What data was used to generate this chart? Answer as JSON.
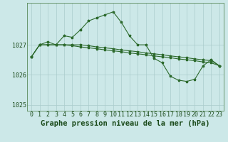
{
  "title": "Graphe pression niveau de la mer (hPa)",
  "x_hours": [
    0,
    1,
    2,
    3,
    4,
    5,
    6,
    7,
    8,
    9,
    10,
    11,
    12,
    13,
    14,
    15,
    16,
    17,
    18,
    19,
    20,
    21,
    22,
    23
  ],
  "line1": [
    1026.6,
    1027.0,
    1027.1,
    1027.0,
    1027.3,
    1027.25,
    1027.5,
    1027.8,
    1027.9,
    1028.0,
    1028.1,
    1027.75,
    1027.3,
    1027.0,
    1027.0,
    1026.55,
    1026.4,
    1025.95,
    1025.82,
    1025.78,
    1025.85,
    1026.3,
    1026.5,
    1026.3
  ],
  "line2": [
    1026.6,
    1027.0,
    1027.0,
    1027.0,
    1027.0,
    1027.0,
    1027.0,
    1026.97,
    1026.93,
    1026.9,
    1026.87,
    1026.83,
    1026.8,
    1026.77,
    1026.73,
    1026.7,
    1026.67,
    1026.63,
    1026.6,
    1026.57,
    1026.53,
    1026.5,
    1026.47,
    1026.3
  ],
  "line3": [
    1026.6,
    1027.0,
    1027.0,
    1027.0,
    1027.0,
    1026.97,
    1026.93,
    1026.9,
    1026.87,
    1026.83,
    1026.8,
    1026.77,
    1026.73,
    1026.7,
    1026.67,
    1026.63,
    1026.6,
    1026.57,
    1026.53,
    1026.5,
    1026.47,
    1026.43,
    1026.4,
    1026.3
  ],
  "ylim": [
    1024.8,
    1028.4
  ],
  "yticks": [
    1025,
    1026,
    1027
  ],
  "line_color": "#2d6a2d",
  "marker": "*",
  "bg_color": "#cce8e8",
  "grid_color": "#aacccc",
  "label_color": "#1a4a1a",
  "title_fontsize": 7.5,
  "tick_fontsize": 6,
  "marker_size": 2.5,
  "linewidth": 0.8
}
